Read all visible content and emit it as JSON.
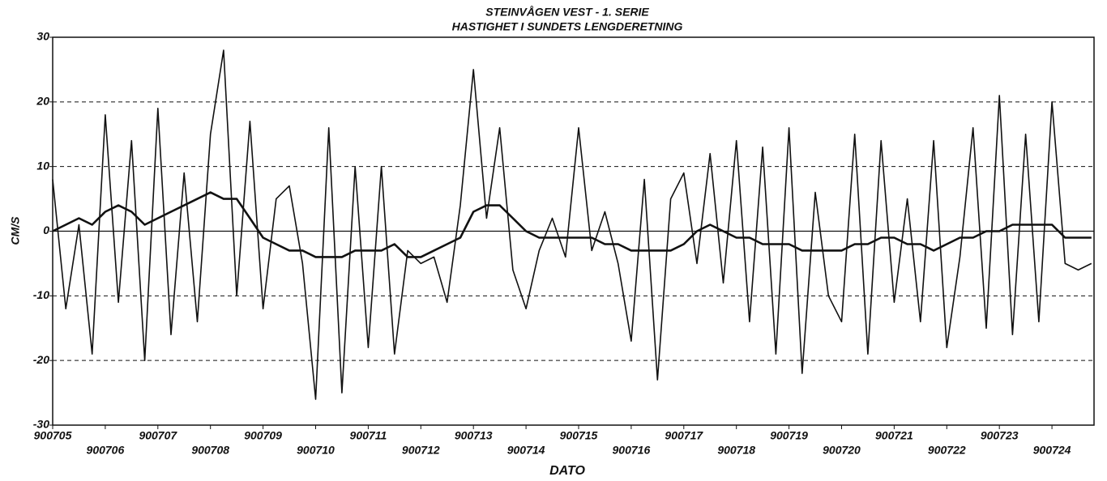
{
  "chart_data": {
    "type": "line",
    "title": "STEINVÅGEN VEST - 1. SERIE",
    "subtitle": "HASTIGHET I SUNDETS LENGDERETNING",
    "x_label": "DATO",
    "y_label": "CM/S",
    "x": [
      0,
      0.25,
      0.5,
      0.75,
      1,
      1.25,
      1.5,
      1.75,
      2,
      2.25,
      2.5,
      2.75,
      3,
      3.25,
      3.5,
      3.75,
      4,
      4.25,
      4.5,
      4.75,
      5,
      5.25,
      5.5,
      5.75,
      6,
      6.25,
      6.5,
      6.75,
      7,
      7.25,
      7.5,
      7.75,
      8,
      8.25,
      8.5,
      8.75,
      9,
      9.25,
      9.5,
      9.75,
      10,
      10.25,
      10.5,
      10.75,
      11,
      11.25,
      11.5,
      11.75,
      12,
      12.25,
      12.5,
      12.75,
      13,
      13.25,
      13.5,
      13.75,
      14,
      14.25,
      14.5,
      14.75,
      15,
      15.25,
      15.5,
      15.75,
      16,
      16.25,
      16.5,
      16.75,
      17,
      17.25,
      17.5,
      17.75,
      18,
      18.25,
      18.5,
      18.75,
      19,
      19.25,
      19.5,
      19.75
    ],
    "series": [
      {
        "color": "#111111",
        "values": [
          8,
          -12,
          1,
          -19,
          18,
          -11,
          14,
          -20,
          19,
          -16,
          9,
          -14,
          15,
          28,
          -10,
          17,
          -12,
          5,
          7,
          -5,
          -26,
          16,
          -25,
          10,
          -18,
          10,
          -19,
          -3,
          -5,
          -4,
          -11,
          4,
          25,
          2,
          16,
          -6,
          -12,
          -3,
          2,
          -4,
          16,
          -3,
          3,
          -5,
          -17,
          8,
          -23,
          5,
          9,
          -5,
          12,
          -8,
          14,
          -14,
          13,
          -19,
          16,
          -22,
          6,
          -10,
          -14,
          15,
          -19,
          14,
          -11,
          5,
          -14,
          14,
          -18,
          -4,
          16,
          -15,
          21,
          -16,
          15,
          -14,
          20,
          -5,
          -6,
          -5
        ]
      },
      {
        "color": "#111111",
        "values": [
          0,
          1,
          2,
          1,
          3,
          4,
          3,
          1,
          2,
          3,
          4,
          5,
          6,
          5,
          5,
          2,
          -1,
          -2,
          -3,
          -3,
          -4,
          -4,
          -4,
          -3,
          -3,
          -3,
          -2,
          -4,
          -4,
          -3,
          -2,
          -1,
          3,
          4,
          4,
          2,
          0,
          -1,
          -1,
          -1,
          -1,
          -1,
          -2,
          -2,
          -3,
          -3,
          -3,
          -3,
          -2,
          0,
          1,
          0,
          -1,
          -1,
          -2,
          -2,
          -2,
          -3,
          -3,
          -3,
          -3,
          -2,
          -2,
          -1,
          -1,
          -2,
          -2,
          -3,
          -2,
          -1,
          -1,
          0,
          0,
          1,
          1,
          1,
          1,
          -1,
          -1,
          -1
        ]
      }
    ],
    "xlim": [
      0,
      19.8
    ],
    "xticks": [
      {
        "value": 0,
        "label": "900705"
      },
      {
        "value": 1,
        "label": "900706"
      },
      {
        "value": 2,
        "label": "900707"
      },
      {
        "value": 3,
        "label": "900708"
      },
      {
        "value": 4,
        "label": "900709"
      },
      {
        "value": 5,
        "label": "900710"
      },
      {
        "value": 6,
        "label": "900711"
      },
      {
        "value": 7,
        "label": "900712"
      },
      {
        "value": 8,
        "label": "900713"
      },
      {
        "value": 9,
        "label": "900714"
      },
      {
        "value": 10,
        "label": "900715"
      },
      {
        "value": 11,
        "label": "900716"
      },
      {
        "value": 12,
        "label": "900717"
      },
      {
        "value": 13,
        "label": "900718"
      },
      {
        "value": 14,
        "label": "900719"
      },
      {
        "value": 15,
        "label": "900720"
      },
      {
        "value": 16,
        "label": "900721"
      },
      {
        "value": 17,
        "label": "900722"
      },
      {
        "value": 18,
        "label": "900723"
      },
      {
        "value": 19,
        "label": "900724"
      }
    ],
    "ylim": [
      -30,
      30
    ],
    "yticks": [
      -30,
      -20,
      -10,
      0,
      10,
      20,
      30
    ],
    "grid": true
  }
}
